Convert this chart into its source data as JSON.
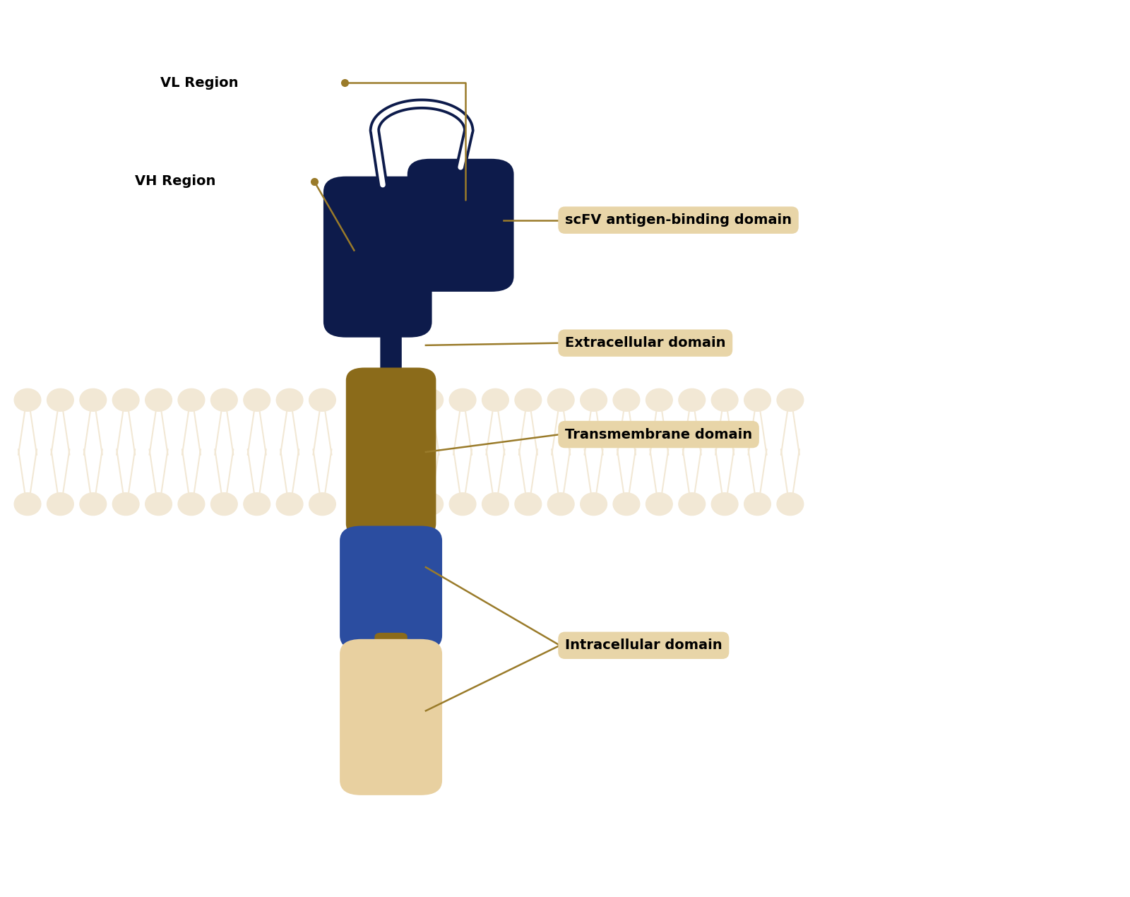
{
  "bg_color": "#ffffff",
  "navy": "#0d1b4b",
  "gold_dark": "#8B6914",
  "gold_ann": "#9a7b2a",
  "tm_color": "#8B6B1A",
  "ic_blue": "#2b4da0",
  "ic_tan": "#e8d0a0",
  "membrane_color": "#f2e8d5",
  "label_box_color": "#e8d5a8",
  "labels": {
    "vl": "VL Region",
    "vh": "VH Region",
    "scfv": "scFV antigen-binding domain",
    "extra": "Extracellular domain",
    "trans": "Transmembrane domain",
    "intra": "Intracellular domain"
  }
}
